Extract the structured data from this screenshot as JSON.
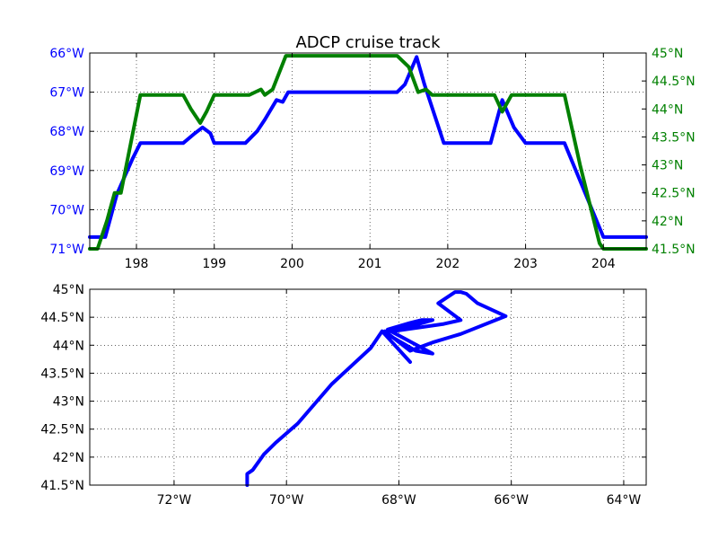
{
  "figure": {
    "title": "ADCP cruise track"
  },
  "chart_data": [
    {
      "type": "line",
      "title": "ADCP cruise track",
      "xlabel": "",
      "ylabel": "",
      "grid": true,
      "xlim": [
        197.4,
        204.55
      ],
      "xticks": [
        198,
        199,
        200,
        201,
        202,
        203,
        204
      ],
      "xtick_labels": [
        "198",
        "199",
        "200",
        "201",
        "202",
        "203",
        "204"
      ],
      "y_left": {
        "ylim": [
          -71,
          -66
        ],
        "ticks": [
          -66,
          -67,
          -68,
          -69,
          -70,
          -71
        ],
        "tick_labels": [
          "66°W",
          "67°W",
          "68°W",
          "69°W",
          "70°W",
          "71°W"
        ],
        "color": "#0000ff"
      },
      "y_right": {
        "ylim": [
          41.5,
          45
        ],
        "ticks": [
          45,
          44.5,
          44,
          43.5,
          43,
          42.5,
          42,
          41.5
        ],
        "tick_labels": [
          "45°N",
          "44.5°N",
          "44°N",
          "43.5°N",
          "43°N",
          "42.5°N",
          "42°N",
          "41.5°N"
        ],
        "color": "#008000"
      },
      "series": [
        {
          "axis": "left",
          "color": "#0000ff",
          "x": [
            197.4,
            197.6,
            197.75,
            197.95,
            198.05,
            198.6,
            198.75,
            198.85,
            198.95,
            199.0,
            199.3,
            199.4,
            199.55,
            199.65,
            199.8,
            199.88,
            199.95,
            201.35,
            201.45,
            201.6,
            201.7,
            201.95,
            202.55,
            202.7,
            202.85,
            203.0,
            203.5,
            204.0,
            204.55
          ],
          "y": [
            -70.7,
            -70.7,
            -69.6,
            -68.7,
            -68.3,
            -68.3,
            -68.05,
            -67.9,
            -68.05,
            -68.3,
            -68.3,
            -68.3,
            -68.0,
            -67.7,
            -67.2,
            -67.25,
            -67.0,
            -67.0,
            -66.8,
            -66.1,
            -66.8,
            -68.3,
            -68.3,
            -67.2,
            -67.9,
            -68.3,
            -68.3,
            -70.7,
            -70.7
          ]
        },
        {
          "axis": "right",
          "color": "#008000",
          "x": [
            197.4,
            197.5,
            197.62,
            197.72,
            197.8,
            198.05,
            198.6,
            198.7,
            198.82,
            198.9,
            199.0,
            199.3,
            199.45,
            199.6,
            199.65,
            199.75,
            199.92,
            201.35,
            201.5,
            201.62,
            201.72,
            201.8,
            202.6,
            202.7,
            202.82,
            203.5,
            203.7,
            203.95,
            204.0,
            204.55
          ],
          "y": [
            41.5,
            41.5,
            42.0,
            42.5,
            42.5,
            44.25,
            44.25,
            44.0,
            43.75,
            43.95,
            44.25,
            44.25,
            44.25,
            44.35,
            44.25,
            44.35,
            44.95,
            44.95,
            44.75,
            44.3,
            44.35,
            44.25,
            44.25,
            43.95,
            44.25,
            44.25,
            43.0,
            41.6,
            41.5,
            41.5
          ]
        }
      ]
    },
    {
      "type": "line",
      "title": "",
      "xlabel": "",
      "ylabel": "",
      "grid": true,
      "xlim": [
        -73.5,
        -63.6
      ],
      "ylim": [
        41.5,
        45
      ],
      "xticks": [
        -72,
        -70,
        -68,
        -66,
        -64
      ],
      "xtick_labels": [
        "72°W",
        "70°W",
        "68°W",
        "66°W",
        "64°W"
      ],
      "yticks": [
        45,
        44.5,
        44,
        43.5,
        43,
        42.5,
        42,
        41.5
      ],
      "ytick_labels": [
        "45°N",
        "44.5°N",
        "44°N",
        "43.5°N",
        "43°N",
        "42.5°N",
        "42°N",
        "41.5°N"
      ],
      "series": [
        {
          "color": "#0000ff",
          "x": [
            -70.7,
            -70.7,
            -70.6,
            -70.4,
            -70.2,
            -69.8,
            -69.2,
            -68.5,
            -68.3,
            -67.8,
            -68.3,
            -67.7,
            -67.4,
            -68.2,
            -67.8,
            -67.6,
            -67.4,
            -68.1,
            -67.2,
            -66.9,
            -67.3,
            -67.0,
            -66.9,
            -66.8,
            -66.6,
            -66.1,
            -66.9,
            -67.4,
            -67.8,
            -68.25
          ],
          "y": [
            41.5,
            41.7,
            41.77,
            42.05,
            42.25,
            42.6,
            43.3,
            43.95,
            44.25,
            43.7,
            44.25,
            43.9,
            43.85,
            44.28,
            44.4,
            44.45,
            44.45,
            44.25,
            44.38,
            44.45,
            44.75,
            44.95,
            44.95,
            44.92,
            44.75,
            44.52,
            44.2,
            44.05,
            43.9,
            44.25
          ]
        }
      ]
    }
  ]
}
